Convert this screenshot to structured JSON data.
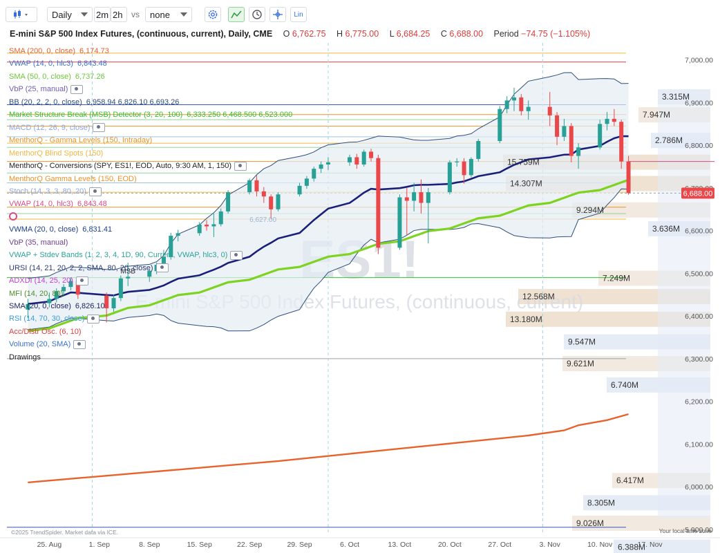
{
  "toolbar": {
    "chart_type_icon": "candlestick-icon",
    "interval": "Daily",
    "quick_intervals": [
      "2m",
      "2h"
    ],
    "vs_label": "vs",
    "compare": "none",
    "tool_icons": [
      "gear-icon",
      "trend-tool-icon",
      "clock-icon",
      "crosshair-icon",
      "lin-scale-icon"
    ],
    "lin_label": "Lin"
  },
  "header": {
    "title": "E-mini S&P 500 Index Futures, (continuous, current), Daily, CME",
    "open_label": "O",
    "open": "6,762.75",
    "high_label": "H",
    "high": "6,775.00",
    "low_label": "L",
    "low": "6,684.25",
    "close_label": "C",
    "close": "6,688.00",
    "period_label": "Period",
    "period": "−74.75 (−1.105%)"
  },
  "indicators": [
    {
      "name": "SMA (200, 0, close)",
      "values": "6,174.73",
      "color": "#e8622c",
      "eye": false
    },
    {
      "name": "VWAP (14, 0, hlc3)",
      "values": "6,843.48",
      "color": "#3a6fd8",
      "eye": false
    },
    {
      "name": "SMA (50, 0, close)",
      "values": "6,737.26",
      "color": "#6cc63a",
      "eye": false
    },
    {
      "name": "VbP (25, manual)",
      "values": "",
      "color": "#6b5fb5",
      "eye": true
    },
    {
      "name": "BB (20, 2, 2, 0, close)",
      "values": "6,958.94 6,826.10 6,693.26",
      "color": "#2d4e7a",
      "eye": false
    },
    {
      "name": "Market Structure Break (MSB) Detector (3, 20, 100)",
      "values": "6,333.250 6,468.500 6,523.000",
      "color": "#2fc12f",
      "eye": false
    },
    {
      "name": "MACD (12, 26, 9, close)",
      "values": "",
      "color": "#8aa6e6",
      "eye": true
    },
    {
      "name": "MenthorQ - Gamma Levels (150, Intraday)",
      "values": "",
      "color": "#e8932c",
      "eye": false
    },
    {
      "name": "MenthorQ Blind Spots (150)",
      "values": "",
      "color": "#f0b640",
      "eye": false
    },
    {
      "name": "MenthorQ - Conversions (SPY, ES1!, EOD, Auto, 9:30 AM, 1, 150)",
      "values": "",
      "color": "#222222",
      "eye": true
    },
    {
      "name": "MenthorQ Gamma Levels (150, EOD)",
      "values": "",
      "color": "#e8932c",
      "eye": false
    },
    {
      "name": "Stoch (14, 3, 3, 80, 20)",
      "values": "",
      "color": "#8aa6e6",
      "eye": true
    },
    {
      "name": "VWAP (14, 0, hlc3)",
      "values": "6,843.48",
      "color": "#d94a8c",
      "eye": false
    },
    {
      "name": "",
      "values": "",
      "color": "#d94a8c",
      "eye": false
    },
    {
      "name": "VWMA (20, 0, close)",
      "values": "6,831.41",
      "color": "#1d3d8f",
      "eye": false
    },
    {
      "name": "VbP (35, manual)",
      "values": "",
      "color": "#6b3f8f",
      "eye": false
    },
    {
      "name": "VWAP + Stdev Bands (1, 2, 3, 4, 1D, 90, Current, VWAP, hlc3, 0)",
      "values": "",
      "color": "#2ba39a",
      "eye": true
    },
    {
      "name": "URSI (14, 21, 20, 2, 2, SMA, 80, 20, close)",
      "values": "",
      "color": "#2b3a75",
      "eye": true
    },
    {
      "name": "ADXDI (14, 25, 20)",
      "values": "",
      "color": "#c23bd4",
      "eye": true
    },
    {
      "name": "MFI (14, 20, 80)",
      "values": "",
      "color": "#4d8c2c",
      "eye": false
    },
    {
      "name": "SMA (20, 0, close)",
      "values": "6,826.10",
      "color": "#1a1f5c",
      "eye": false
    },
    {
      "name": "RSI (14, 70, 30, close)",
      "values": "",
      "color": "#3a9bd9",
      "eye": true
    },
    {
      "name": "Acc/Distr Osc. (6, 10)",
      "values": "",
      "color": "#e23b3b",
      "eye": false
    },
    {
      "name": "Volume (20, SMA)",
      "values": "",
      "color": "#3a6fd8",
      "eye": true
    },
    {
      "name": "Drawings",
      "values": "",
      "color": "#222222",
      "eye": false
    }
  ],
  "chart_data": {
    "type": "candlestick",
    "symbol_watermark": "ES1!",
    "watermark_subtitle": "E-mini S&P 500 Index Futures, (continuous, current)",
    "y_ticks": [
      "7,000.00",
      "6,900.00",
      "6,800.00",
      "6,700.00",
      "6,600.00",
      "6,500.00",
      "6,400.00",
      "6,300.00",
      "6,200.00",
      "6,100.00",
      "6,000.00",
      "5,900.00"
    ],
    "y_tick_values": [
      7000,
      6900,
      6800,
      6700,
      6600,
      6500,
      6400,
      6300,
      6200,
      6100,
      6000,
      5900
    ],
    "x_ticks": [
      "25. Aug",
      "1. Sep",
      "8. Sep",
      "15. Sep",
      "22. Sep",
      "29. Sep",
      "6. Oct",
      "13. Oct",
      "20. Oct",
      "27. Oct",
      "3. Nov",
      "10. Nov",
      "17. Nov"
    ],
    "y_range": [
      5890,
      7040
    ],
    "last_price": "6,688.00",
    "last_price_value": 6688,
    "volume_profile_labels": [
      {
        "price": 6915,
        "label": "3.315M"
      },
      {
        "price": 6873,
        "label": "7.947M"
      },
      {
        "price": 6813,
        "label": "2.786M"
      },
      {
        "price": 6762,
        "label": "15.759M"
      },
      {
        "price": 6712,
        "label": "14.307M"
      },
      {
        "price": 6650,
        "label": "9.294M"
      },
      {
        "price": 6606,
        "label": "3.636M"
      },
      {
        "price": 6490,
        "label": "7.249M"
      },
      {
        "price": 6447,
        "label": "12.568M"
      },
      {
        "price": 6394,
        "label": "13.180M"
      },
      {
        "price": 6341,
        "label": "9.547M"
      },
      {
        "price": 6290,
        "label": "9.621M"
      },
      {
        "price": 6240,
        "label": "6.740M"
      },
      {
        "price": 6016,
        "label": "6.417M"
      },
      {
        "price": 5964,
        "label": "8.305M"
      },
      {
        "price": 5916,
        "label": "9.026M"
      },
      {
        "price": 5860,
        "label": "6.388M"
      }
    ],
    "msb_label": "MSB",
    "conversion_label": "6,627.00",
    "copyright": "©2025 TrendSpider. Market data via ICE.",
    "timezone": "Your local time zone",
    "colors": {
      "up": "#27a095",
      "down": "#e9474a",
      "sma200": "#e8622c",
      "sma50": "#7ed321",
      "sma20": "#1a1f7a",
      "bb": "#2d4e7a",
      "bb_fill": "#e6ecf3"
    },
    "candles": [
      {
        "date": "2025-08-22",
        "o": 6415,
        "h": 6440,
        "l": 6395,
        "c": 6428
      },
      {
        "date": "2025-08-25",
        "o": 6430,
        "h": 6455,
        "l": 6420,
        "c": 6440
      },
      {
        "date": "2025-08-26",
        "o": 6440,
        "h": 6465,
        "l": 6432,
        "c": 6458
      },
      {
        "date": "2025-08-27",
        "o": 6458,
        "h": 6475,
        "l": 6448,
        "c": 6468
      },
      {
        "date": "2025-08-28",
        "o": 6468,
        "h": 6490,
        "l": 6460,
        "c": 6482
      },
      {
        "date": "2025-08-29",
        "o": 6482,
        "h": 6488,
        "l": 6440,
        "c": 6450
      },
      {
        "date": "2025-09-02",
        "o": 6448,
        "h": 6455,
        "l": 6385,
        "c": 6418
      },
      {
        "date": "2025-09-03",
        "o": 6418,
        "h": 6450,
        "l": 6410,
        "c": 6442
      },
      {
        "date": "2025-09-04",
        "o": 6442,
        "h": 6495,
        "l": 6435,
        "c": 6488
      },
      {
        "date": "2025-09-05",
        "o": 6488,
        "h": 6525,
        "l": 6470,
        "c": 6492
      },
      {
        "date": "2025-09-08",
        "o": 6492,
        "h": 6510,
        "l": 6480,
        "c": 6506
      },
      {
        "date": "2025-09-09",
        "o": 6505,
        "h": 6525,
        "l": 6498,
        "c": 6520
      },
      {
        "date": "2025-09-10",
        "o": 6520,
        "h": 6555,
        "l": 6512,
        "c": 6538
      },
      {
        "date": "2025-09-11",
        "o": 6538,
        "h": 6595,
        "l": 6532,
        "c": 6588
      },
      {
        "date": "2025-09-12",
        "o": 6588,
        "h": 6602,
        "l": 6575,
        "c": 6594
      },
      {
        "date": "2025-09-15",
        "o": 6594,
        "h": 6620,
        "l": 6588,
        "c": 6614
      },
      {
        "date": "2025-09-16",
        "o": 6614,
        "h": 6625,
        "l": 6600,
        "c": 6610
      },
      {
        "date": "2025-09-17",
        "o": 6610,
        "h": 6640,
        "l": 6585,
        "c": 6615
      },
      {
        "date": "2025-09-18",
        "o": 6615,
        "h": 6652,
        "l": 6610,
        "c": 6645
      },
      {
        "date": "2025-09-19",
        "o": 6645,
        "h": 6695,
        "l": 6640,
        "c": 6690
      },
      {
        "date": "2025-09-22",
        "o": 6690,
        "h": 6722,
        "l": 6685,
        "c": 6718
      },
      {
        "date": "2025-09-23",
        "o": 6718,
        "h": 6730,
        "l": 6680,
        "c": 6692
      },
      {
        "date": "2025-09-24",
        "o": 6692,
        "h": 6702,
        "l": 6665,
        "c": 6680
      },
      {
        "date": "2025-09-25",
        "o": 6680,
        "h": 6685,
        "l": 6628,
        "c": 6650
      },
      {
        "date": "2025-09-26",
        "o": 6650,
        "h": 6690,
        "l": 6645,
        "c": 6685
      },
      {
        "date": "2025-09-29",
        "o": 6685,
        "h": 6712,
        "l": 6680,
        "c": 6705
      },
      {
        "date": "2025-09-30",
        "o": 6705,
        "h": 6728,
        "l": 6698,
        "c": 6722
      },
      {
        "date": "2025-10-01",
        "o": 6722,
        "h": 6750,
        "l": 6715,
        "c": 6745
      },
      {
        "date": "2025-10-02",
        "o": 6745,
        "h": 6762,
        "l": 6735,
        "c": 6755
      },
      {
        "date": "2025-10-03",
        "o": 6755,
        "h": 6772,
        "l": 6742,
        "c": 6760
      },
      {
        "date": "2025-10-06",
        "o": 6760,
        "h": 6778,
        "l": 6752,
        "c": 6772
      },
      {
        "date": "2025-10-07",
        "o": 6772,
        "h": 6780,
        "l": 6745,
        "c": 6755
      },
      {
        "date": "2025-10-08",
        "o": 6755,
        "h": 6790,
        "l": 6750,
        "c": 6785
      },
      {
        "date": "2025-10-09",
        "o": 6785,
        "h": 6792,
        "l": 6762,
        "c": 6770
      },
      {
        "date": "2025-10-10",
        "o": 6770,
        "h": 6778,
        "l": 6545,
        "c": 6560
      },
      {
        "date": "2025-10-13",
        "o": 6560,
        "h": 6685,
        "l": 6555,
        "c": 6678
      },
      {
        "date": "2025-10-14",
        "o": 6678,
        "h": 6700,
        "l": 6590,
        "c": 6670
      },
      {
        "date": "2025-10-15",
        "o": 6670,
        "h": 6712,
        "l": 6645,
        "c": 6690
      },
      {
        "date": "2025-10-16",
        "o": 6690,
        "h": 6720,
        "l": 6640,
        "c": 6665
      },
      {
        "date": "2025-10-17",
        "o": 6665,
        "h": 6700,
        "l": 6570,
        "c": 6690
      },
      {
        "date": "2025-10-20",
        "o": 6690,
        "h": 6765,
        "l": 6685,
        "c": 6760
      },
      {
        "date": "2025-10-21",
        "o": 6760,
        "h": 6770,
        "l": 6750,
        "c": 6762
      },
      {
        "date": "2025-10-22",
        "o": 6762,
        "h": 6770,
        "l": 6710,
        "c": 6730
      },
      {
        "date": "2025-10-23",
        "o": 6730,
        "h": 6772,
        "l": 6725,
        "c": 6768
      },
      {
        "date": "2025-10-24",
        "o": 6768,
        "h": 6815,
        "l": 6762,
        "c": 6810
      },
      {
        "date": "2025-10-27",
        "o": 6810,
        "h": 6892,
        "l": 6805,
        "c": 6885
      },
      {
        "date": "2025-10-28",
        "o": 6885,
        "h": 6915,
        "l": 6875,
        "c": 6905
      },
      {
        "date": "2025-10-29",
        "o": 6905,
        "h": 6935,
        "l": 6880,
        "c": 6912
      },
      {
        "date": "2025-10-30",
        "o": 6912,
        "h": 6920,
        "l": 6870,
        "c": 6880
      },
      {
        "date": "2025-10-31",
        "o": 6880,
        "h": 6905,
        "l": 6860,
        "c": 6890
      },
      {
        "date": "2025-11-03",
        "o": 6890,
        "h": 6925,
        "l": 6845,
        "c": 6870
      },
      {
        "date": "2025-11-04",
        "o": 6870,
        "h": 6878,
        "l": 6800,
        "c": 6820
      },
      {
        "date": "2025-11-05",
        "o": 6820,
        "h": 6862,
        "l": 6810,
        "c": 6845
      },
      {
        "date": "2025-11-06",
        "o": 6845,
        "h": 6852,
        "l": 6760,
        "c": 6775
      },
      {
        "date": "2025-11-07",
        "o": 6775,
        "h": 6805,
        "l": 6745,
        "c": 6795
      },
      {
        "date": "2025-11-10",
        "o": 6795,
        "h": 6860,
        "l": 6790,
        "c": 6850
      },
      {
        "date": "2025-11-11",
        "o": 6850,
        "h": 6878,
        "l": 6835,
        "c": 6862
      },
      {
        "date": "2025-11-12",
        "o": 6862,
        "h": 6885,
        "l": 6845,
        "c": 6855
      },
      {
        "date": "2025-11-13",
        "o": 6855,
        "h": 6860,
        "l": 6745,
        "c": 6762
      },
      {
        "date": "2025-11-14",
        "o": 6762,
        "h": 6775,
        "l": 6684,
        "c": 6688
      }
    ],
    "sma200": [
      6010,
      6020,
      6030,
      6040,
      6050,
      6060,
      6072,
      6084,
      6096,
      6108,
      6120,
      6132,
      6144,
      6156,
      6170
    ],
    "sma200_dates": [
      "2025-08-22",
      "2025-08-29",
      "2025-09-05",
      "2025-09-12",
      "2025-09-19",
      "2025-09-26",
      "2025-10-03",
      "2025-10-10",
      "2025-10-17",
      "2025-10-24",
      "2025-10-31",
      "2025-11-05",
      "2025-11-07",
      "2025-11-11",
      "2025-11-14"
    ]
  }
}
